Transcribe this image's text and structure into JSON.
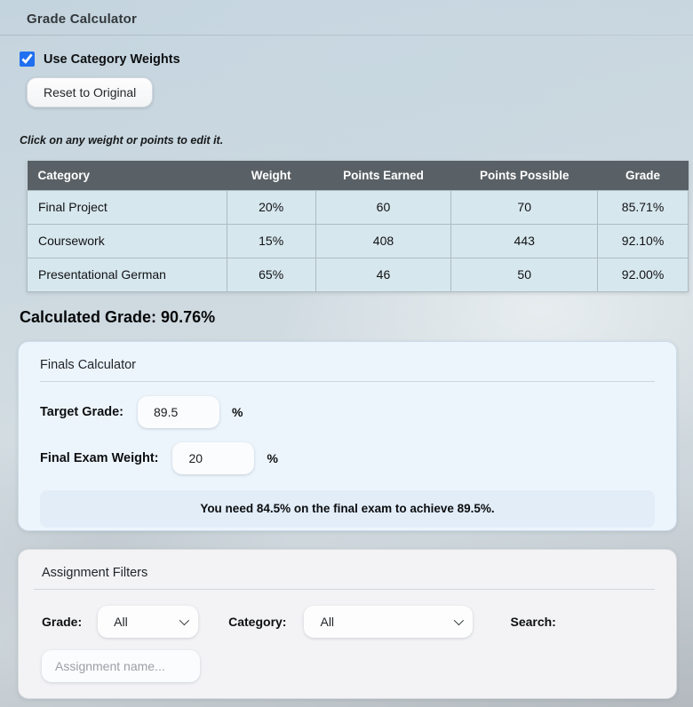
{
  "page": {
    "title": "Grade Calculator"
  },
  "controls": {
    "use_weights_label": "Use Category Weights",
    "use_weights_checked": true,
    "reset_button_label": "Reset to Original",
    "hint": "Click on any weight or points to edit it."
  },
  "table": {
    "headers": [
      "Category",
      "Weight",
      "Points Earned",
      "Points Possible",
      "Grade"
    ],
    "rows": [
      {
        "category": "Final Project",
        "weight": "20%",
        "points_earned": "60",
        "points_possible": "70",
        "grade": "85.71%"
      },
      {
        "category": "Coursework",
        "weight": "15%",
        "points_earned": "408",
        "points_possible": "443",
        "grade": "92.10%"
      },
      {
        "category": "Presentational German",
        "weight": "65%",
        "points_earned": "46",
        "points_possible": "50",
        "grade": "92.00%"
      }
    ]
  },
  "calculated_grade": {
    "label": "Calculated Grade: 90.76%",
    "value": "90.76%"
  },
  "finals_calculator": {
    "title": "Finals Calculator",
    "target_grade_label": "Target Grade:",
    "target_grade_value": "89.5",
    "target_grade_unit": "%",
    "final_exam_weight_label": "Final Exam Weight:",
    "final_exam_weight_value": "20",
    "final_exam_weight_unit": "%",
    "message": "You need 84.5% on the final exam to achieve 89.5%."
  },
  "filters": {
    "title": "Assignment Filters",
    "grade_label": "Grade:",
    "grade_value": "All",
    "category_label": "Category:",
    "category_value": "All",
    "search_label": "Search:",
    "search_placeholder": "Assignment name..."
  },
  "icons": {
    "checkmark_icon": "✓",
    "chevron_down_icon": "⌄"
  },
  "colors": {
    "checkbox_accent": "#1f6ff0",
    "table_header_bg": "#5a6166",
    "table_row_bg": "#d7e7ee",
    "finals_panel_bg": "#edf5fc",
    "finals_message_bg": "#e2edf8",
    "filters_panel_bg": "#f3f3f5"
  }
}
